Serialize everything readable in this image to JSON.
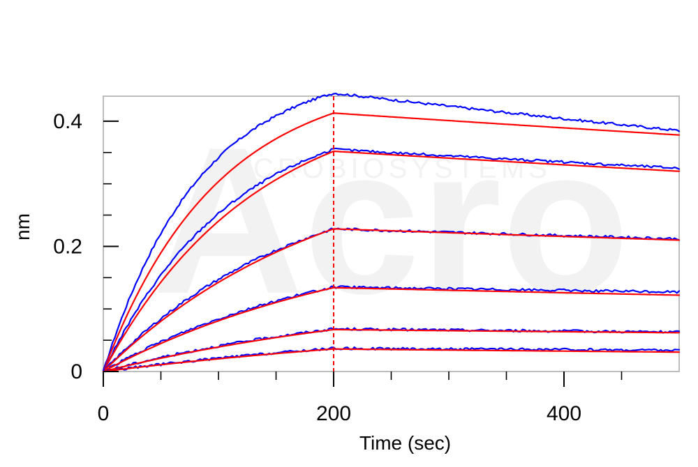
{
  "chart_data": {
    "type": "line",
    "title": "",
    "xlabel": "Time (sec)",
    "ylabel": "nm",
    "xlim": [
      0,
      500
    ],
    "ylim": [
      0,
      0.44
    ],
    "x_ticks": [
      0,
      200,
      400
    ],
    "x_tick_labels": [
      "0",
      "200",
      "400"
    ],
    "y_ticks": [
      0,
      0.2,
      0.4
    ],
    "y_tick_labels": [
      "0",
      "0.2",
      "0.4"
    ],
    "grid": false,
    "legend": "none",
    "vline_x": 200,
    "watermark": "ACROBIOSYSTEMS",
    "colors": {
      "measured": "#0000ff",
      "fit": "#ff0000",
      "vline": "#ff0000",
      "frame": "#bdbdbd"
    },
    "series": [
      {
        "peak": 0.445,
        "end": 0.385,
        "fit_peak": 0.413,
        "fit_end": 0.378
      },
      {
        "peak": 0.355,
        "end": 0.325,
        "fit_peak": 0.352,
        "fit_end": 0.32
      },
      {
        "peak": 0.228,
        "end": 0.212,
        "fit_peak": 0.228,
        "fit_end": 0.21
      },
      {
        "peak": 0.135,
        "end": 0.127,
        "fit_peak": 0.134,
        "fit_end": 0.122
      },
      {
        "peak": 0.068,
        "end": 0.063,
        "fit_peak": 0.067,
        "fit_end": 0.062
      },
      {
        "peak": 0.037,
        "end": 0.034,
        "fit_peak": 0.036,
        "fit_end": 0.031
      }
    ]
  }
}
